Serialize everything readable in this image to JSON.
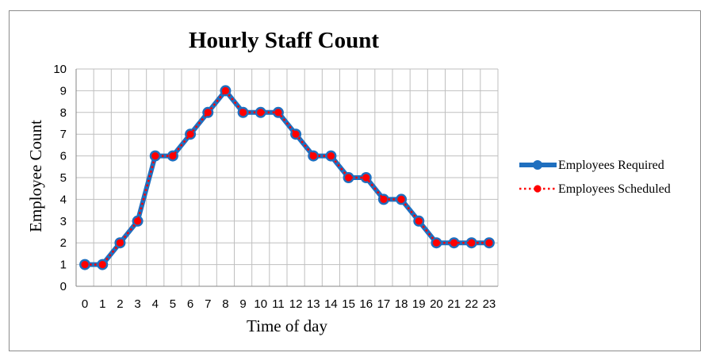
{
  "chart_data": {
    "type": "line",
    "title": "Hourly Staff Count",
    "xlabel": "Time of day",
    "ylabel": "Employee Count",
    "x": [
      0,
      1,
      2,
      3,
      4,
      5,
      6,
      7,
      8,
      9,
      10,
      11,
      12,
      13,
      14,
      15,
      16,
      17,
      18,
      19,
      20,
      21,
      22,
      23
    ],
    "ylim": [
      0,
      10
    ],
    "yticks": [
      0,
      1,
      2,
      3,
      4,
      5,
      6,
      7,
      8,
      9,
      10
    ],
    "grid": true,
    "legend_position": "right",
    "series": [
      {
        "name": "Employees Required",
        "color": "#1f6fbf",
        "style": "solid",
        "marker": "circle",
        "values": [
          1,
          1,
          2,
          3,
          6,
          6,
          7,
          8,
          9,
          8,
          8,
          8,
          7,
          6,
          6,
          5,
          5,
          4,
          4,
          3,
          2,
          2,
          2,
          2
        ]
      },
      {
        "name": "Employees Scheduled",
        "color": "#ff0000",
        "style": "dotted",
        "marker": "circle",
        "values": [
          1,
          1,
          2,
          3,
          6,
          6,
          7,
          8,
          9,
          8,
          8,
          8,
          7,
          6,
          6,
          5,
          5,
          4,
          4,
          3,
          2,
          2,
          2,
          2
        ]
      }
    ]
  }
}
